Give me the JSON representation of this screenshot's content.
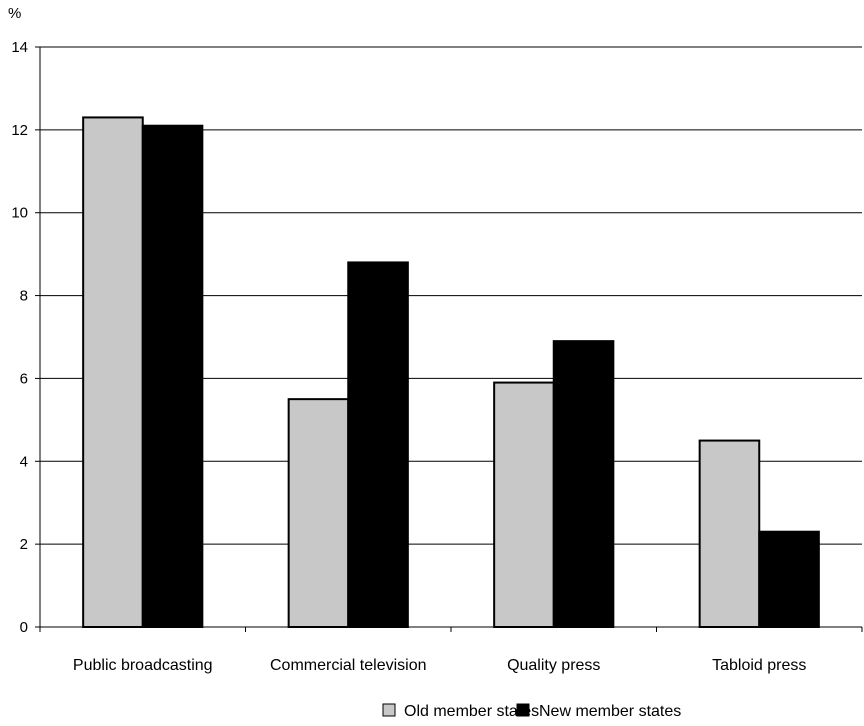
{
  "chart_data": {
    "type": "bar",
    "title": "",
    "xlabel": "",
    "ylabel": "%",
    "ylim": [
      0,
      14
    ],
    "yticks": [
      0,
      2,
      4,
      6,
      8,
      10,
      12,
      14
    ],
    "grid": true,
    "legend_position": "bottom",
    "categories": [
      "Public broadcasting",
      "Commercial television",
      "Quality press",
      "Tabloid press"
    ],
    "series": [
      {
        "name": "Old member states",
        "color": "#c8c8c8",
        "values": [
          12.3,
          5.5,
          5.9,
          4.5
        ]
      },
      {
        "name": "New member states",
        "color": "#000000",
        "values": [
          12.1,
          8.8,
          6.9,
          2.3
        ]
      }
    ]
  }
}
